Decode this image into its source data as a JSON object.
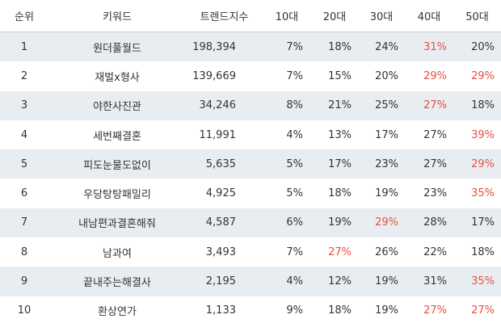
{
  "table": {
    "header": [
      "순위",
      "키워드",
      "트렌드지수",
      "10대",
      "20대",
      "30대",
      "40대",
      "50대"
    ],
    "rows": [
      [
        "1",
        "원더풀월드",
        "198,394",
        "7%",
        "18%",
        "24%",
        "31%",
        "20%"
      ],
      [
        "2",
        "재벌x형사",
        "139,669",
        "7%",
        "15%",
        "20%",
        "29%",
        "29%"
      ],
      [
        "3",
        "야한사진관",
        "34,246",
        "8%",
        "21%",
        "25%",
        "27%",
        "18%"
      ],
      [
        "4",
        "세번째결혼",
        "11,991",
        "4%",
        "13%",
        "17%",
        "27%",
        "39%"
      ],
      [
        "5",
        "피도눈물도없이",
        "5,635",
        "5%",
        "17%",
        "23%",
        "27%",
        "29%"
      ],
      [
        "6",
        "우당탕탕패밀리",
        "4,925",
        "5%",
        "18%",
        "19%",
        "23%",
        "35%"
      ],
      [
        "7",
        "내남편과결혼해줘",
        "4,587",
        "6%",
        "19%",
        "29%",
        "28%",
        "17%"
      ],
      [
        "8",
        "남과여",
        "3,493",
        "7%",
        "27%",
        "26%",
        "22%",
        "18%"
      ],
      [
        "9",
        "끝내주는해결사",
        "2,195",
        "4%",
        "12%",
        "19%",
        "31%",
        "35%"
      ],
      [
        "10",
        "환상연가",
        "1,133",
        "9%",
        "18%",
        "19%",
        "27%",
        "27%"
      ]
    ]
  }
}
